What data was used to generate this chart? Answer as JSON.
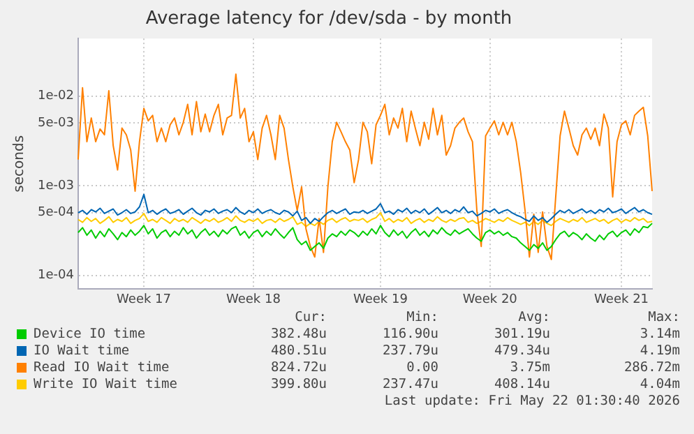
{
  "chart_data": {
    "type": "line",
    "title": "Average latency for /dev/sda - by month",
    "ylabel": "seconds",
    "log": "y",
    "grid": true,
    "legend": "bottom",
    "marker": "none",
    "line_style": "solid",
    "ylim": [
      7e-05,
      0.044
    ],
    "yticks": [
      {
        "value": 0.0001,
        "label": "1e-04"
      },
      {
        "value": 0.0005,
        "label": "5e-04"
      },
      {
        "value": 0.001,
        "label": "1e-03"
      },
      {
        "value": 0.005,
        "label": "5e-03"
      },
      {
        "value": 0.01,
        "label": "1e-02"
      }
    ],
    "categories": [
      null,
      null,
      null,
      null,
      null,
      null,
      null,
      null,
      null,
      null,
      null,
      null,
      null,
      null,
      null,
      "Week 17",
      null,
      null,
      null,
      null,
      null,
      null,
      null,
      null,
      null,
      null,
      null,
      null,
      null,
      null,
      null,
      null,
      null,
      null,
      null,
      null,
      null,
      null,
      null,
      null,
      "Week 18",
      null,
      null,
      null,
      null,
      null,
      null,
      null,
      null,
      null,
      null,
      null,
      null,
      null,
      null,
      null,
      null,
      null,
      null,
      null,
      null,
      null,
      null,
      null,
      null,
      null,
      null,
      null,
      null,
      "Week 19",
      null,
      null,
      null,
      null,
      null,
      null,
      null,
      null,
      null,
      null,
      null,
      null,
      null,
      null,
      null,
      null,
      null,
      null,
      null,
      null,
      null,
      null,
      null,
      null,
      "Week 20",
      null,
      null,
      null,
      null,
      null,
      null,
      null,
      null,
      null,
      null,
      null,
      null,
      null,
      null,
      null,
      null,
      null,
      null,
      null,
      null,
      null,
      null,
      null,
      null,
      null,
      null,
      null,
      null,
      null,
      "Week 21",
      null,
      null,
      null,
      null,
      null,
      null,
      null
    ],
    "series": [
      {
        "name": "Device IO time",
        "color": "#00cc00",
        "values": [
          0.0003,
          0.00034,
          0.00028,
          0.00032,
          0.00026,
          0.00031,
          0.00027,
          0.00033,
          0.00029,
          0.00025,
          0.0003,
          0.00027,
          0.00032,
          0.00028,
          0.00031,
          0.00036,
          0.00029,
          0.00033,
          0.00026,
          0.0003,
          0.00032,
          0.00027,
          0.00031,
          0.00028,
          0.00034,
          0.00029,
          0.00032,
          0.00026,
          0.0003,
          0.00033,
          0.00028,
          0.00031,
          0.00027,
          0.00032,
          0.00029,
          0.00033,
          0.00035,
          0.00028,
          0.00031,
          0.00026,
          0.0003,
          0.00032,
          0.00027,
          0.00031,
          0.00028,
          0.00033,
          0.00029,
          0.00026,
          0.0003,
          0.00034,
          0.00025,
          0.00022,
          0.00024,
          0.00019,
          0.00021,
          0.00023,
          0.0002,
          0.00026,
          0.00029,
          0.00027,
          0.00031,
          0.00028,
          0.00032,
          0.0003,
          0.00027,
          0.00031,
          0.00028,
          0.00033,
          0.00029,
          0.00036,
          0.0003,
          0.00027,
          0.00032,
          0.00028,
          0.00031,
          0.00026,
          0.0003,
          0.00033,
          0.00028,
          0.00031,
          0.00027,
          0.00032,
          0.00029,
          0.00034,
          0.0003,
          0.00028,
          0.00032,
          0.00029,
          0.00031,
          0.00033,
          0.00029,
          0.00026,
          0.00024,
          0.0003,
          0.00032,
          0.00029,
          0.00031,
          0.00028,
          0.0003,
          0.00027,
          0.00026,
          0.00023,
          0.00021,
          0.00019,
          0.00022,
          0.0002,
          0.00023,
          0.00019,
          0.00021,
          0.00025,
          0.00029,
          0.00031,
          0.00027,
          0.0003,
          0.00028,
          0.00025,
          0.00029,
          0.00026,
          0.00024,
          0.00028,
          0.00025,
          0.00029,
          0.00031,
          0.00027,
          0.0003,
          0.00032,
          0.00028,
          0.00033,
          0.0003,
          0.00035,
          0.00034,
          0.00038
        ]
      },
      {
        "name": "IO Wait time",
        "color": "#0066b3",
        "values": [
          0.0005,
          0.00053,
          0.00048,
          0.00054,
          0.00051,
          0.00056,
          0.00049,
          0.00052,
          0.00055,
          0.00047,
          0.0005,
          0.00054,
          0.00049,
          0.00051,
          0.00058,
          0.0008,
          0.0005,
          0.00053,
          0.00048,
          0.00052,
          0.00055,
          0.00049,
          0.00051,
          0.00054,
          0.00048,
          0.00052,
          0.00056,
          0.0005,
          0.00047,
          0.00053,
          0.00051,
          0.00055,
          0.00049,
          0.00052,
          0.00054,
          0.0005,
          0.00057,
          0.00051,
          0.00048,
          0.00053,
          0.0005,
          0.00055,
          0.00049,
          0.00052,
          0.00054,
          0.0005,
          0.00048,
          0.00053,
          0.00051,
          0.00046,
          0.00052,
          0.00041,
          0.00044,
          0.00038,
          0.00043,
          0.0004,
          0.00045,
          0.0005,
          0.00053,
          0.00049,
          0.00052,
          0.00055,
          0.00048,
          0.00051,
          0.0005,
          0.00053,
          0.00049,
          0.00052,
          0.00055,
          0.00063,
          0.0005,
          0.00052,
          0.00048,
          0.00054,
          0.00051,
          0.00056,
          0.00049,
          0.00053,
          0.0005,
          0.00055,
          0.00048,
          0.00052,
          0.00057,
          0.0005,
          0.00053,
          0.00049,
          0.00054,
          0.00051,
          0.00058,
          0.0005,
          0.00052,
          0.00046,
          0.00049,
          0.00053,
          0.00051,
          0.00055,
          0.00049,
          0.00052,
          0.00054,
          0.0005,
          0.00047,
          0.00045,
          0.00042,
          0.0004,
          0.00046,
          0.00041,
          0.00044,
          0.00039,
          0.00043,
          0.00048,
          0.00053,
          0.0005,
          0.00054,
          0.00049,
          0.00052,
          0.00055,
          0.0005,
          0.00053,
          0.00049,
          0.00054,
          0.00051,
          0.00056,
          0.0005,
          0.00052,
          0.00055,
          0.00049,
          0.00053,
          0.00057,
          0.00051,
          0.00054,
          0.0005,
          0.00048
        ]
      },
      {
        "name": "Read IO Wait time",
        "color": "#ff8000",
        "values": [
          0.00196,
          0.0124,
          0.0031,
          0.0057,
          0.0031,
          0.0043,
          0.0037,
          0.0115,
          0.0028,
          0.0015,
          0.0044,
          0.0037,
          0.0025,
          0.00087,
          0.0031,
          0.0073,
          0.0053,
          0.0061,
          0.0031,
          0.0044,
          0.0031,
          0.0048,
          0.0057,
          0.0037,
          0.0051,
          0.0081,
          0.0037,
          0.0087,
          0.004,
          0.0063,
          0.004,
          0.0061,
          0.0081,
          0.0037,
          0.0057,
          0.0061,
          0.0176,
          0.0057,
          0.0073,
          0.0031,
          0.004,
          0.00196,
          0.0044,
          0.0061,
          0.0037,
          0.00196,
          0.0061,
          0.0044,
          0.00196,
          0.00097,
          0.00053,
          0.00097,
          0.00033,
          0.00021,
          0.00016,
          0.00043,
          0.00018,
          0.00097,
          0.0031,
          0.0051,
          0.004,
          0.0031,
          0.0025,
          0.00108,
          0.00196,
          0.0051,
          0.004,
          0.00176,
          0.0048,
          0.0061,
          0.0081,
          0.0037,
          0.0057,
          0.0044,
          0.0073,
          0.0031,
          0.0068,
          0.0043,
          0.0028,
          0.0051,
          0.0033,
          0.0073,
          0.0037,
          0.0061,
          0.0022,
          0.0028,
          0.0044,
          0.0051,
          0.0057,
          0.004,
          0.0031,
          0.00053,
          0.00021,
          0.0036,
          0.0044,
          0.0053,
          0.0037,
          0.0051,
          0.0037,
          0.0051,
          0.0031,
          0.0014,
          0.00053,
          0.00016,
          0.00048,
          0.00018,
          0.00051,
          0.00021,
          0.00015,
          0.00075,
          0.0036,
          0.0068,
          0.0044,
          0.0028,
          0.0022,
          0.0037,
          0.0044,
          0.0033,
          0.0044,
          0.0028,
          0.0063,
          0.0044,
          0.00075,
          0.0031,
          0.0048,
          0.0053,
          0.0037,
          0.0061,
          0.0068,
          0.0075,
          0.0036,
          0.00087
        ]
      },
      {
        "name": "Write IO Wait time",
        "color": "#ffcc00",
        "values": [
          0.00042,
          0.00039,
          0.00044,
          0.0004,
          0.00043,
          0.00038,
          0.00041,
          0.00045,
          0.00039,
          0.00042,
          0.0004,
          0.00044,
          0.00038,
          0.00041,
          0.00043,
          0.00049,
          0.0004,
          0.00042,
          0.00039,
          0.00044,
          0.00041,
          0.00038,
          0.00043,
          0.0004,
          0.00042,
          0.00039,
          0.00044,
          0.00041,
          0.00038,
          0.00042,
          0.0004,
          0.00043,
          0.00039,
          0.00041,
          0.00044,
          0.0004,
          0.00046,
          0.00041,
          0.00039,
          0.00042,
          0.0004,
          0.00043,
          0.00038,
          0.00041,
          0.00042,
          0.00039,
          0.00043,
          0.0004,
          0.00042,
          0.00045,
          0.00037,
          0.00039,
          0.00035,
          0.00038,
          0.00036,
          0.0004,
          0.00037,
          0.00041,
          0.00043,
          0.00039,
          0.00042,
          0.00044,
          0.0004,
          0.00042,
          0.00041,
          0.00043,
          0.00039,
          0.00042,
          0.00044,
          0.0005,
          0.0004,
          0.00043,
          0.00039,
          0.00042,
          0.0004,
          0.00044,
          0.00038,
          0.00041,
          0.00043,
          0.00039,
          0.00042,
          0.0004,
          0.00045,
          0.00041,
          0.00039,
          0.00042,
          0.0004,
          0.00043,
          0.00044,
          0.00039,
          0.00041,
          0.00038,
          0.0004,
          0.00043,
          0.00041,
          0.00039,
          0.00042,
          0.0004,
          0.00044,
          0.00041,
          0.00039,
          0.00037,
          0.00039,
          0.00036,
          0.0004,
          0.00037,
          0.00041,
          0.00038,
          0.00036,
          0.0004,
          0.00043,
          0.00041,
          0.00039,
          0.00042,
          0.0004,
          0.00044,
          0.00039,
          0.00041,
          0.00043,
          0.0004,
          0.00042,
          0.00038,
          0.00041,
          0.00043,
          0.00039,
          0.00042,
          0.0004,
          0.00044,
          0.00041,
          0.00043,
          0.00039,
          0.0004
        ]
      }
    ],
    "annotations": [
      "Cur:",
      "Min:",
      "Avg:",
      "Max:",
      "382.48u",
      "116.90u",
      "301.19u",
      "3.14m",
      "480.51u",
      "237.79u",
      "479.34u",
      "4.19m",
      "824.72u",
      "0.00",
      "3.75m",
      "286.72m",
      "399.80u",
      "237.47u",
      "408.14u",
      "4.04m",
      "Last update: Fri May 22 01:30:40 2026"
    ]
  }
}
